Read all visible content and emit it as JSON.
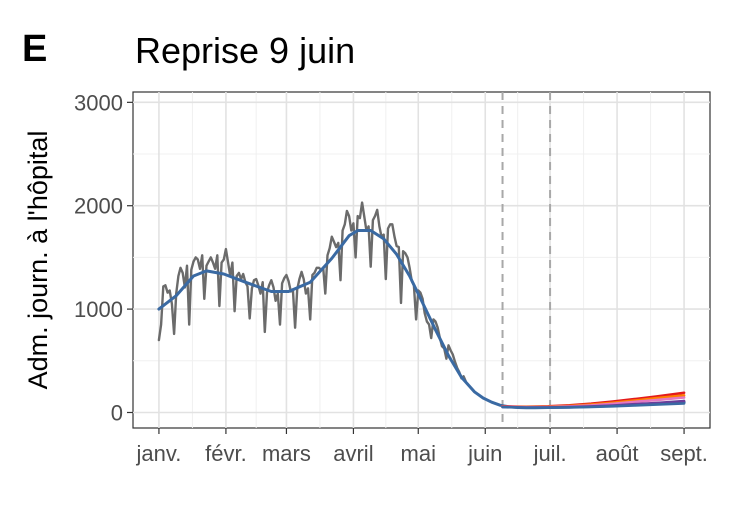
{
  "panel_label": "E",
  "chart_data": {
    "type": "line",
    "title": "Reprise 9 juin",
    "ylabel": "Adm. journ. à l'hôpital",
    "xlabel": "",
    "x_ticks": [
      {
        "label": "janv.",
        "day": 0
      },
      {
        "label": "févr.",
        "day": 31
      },
      {
        "label": "mars",
        "day": 59
      },
      {
        "label": "avril",
        "day": 90
      },
      {
        "label": "mai",
        "day": 120
      },
      {
        "label": "juin",
        "day": 151
      },
      {
        "label": "juil.",
        "day": 181
      },
      {
        "label": "août",
        "day": 212
      },
      {
        "label": "sept.",
        "day": 243
      }
    ],
    "y_ticks": [
      0,
      1000,
      2000,
      3000
    ],
    "xlim": [
      -12,
      255
    ],
    "ylim": [
      -150,
      3100
    ],
    "grid": true,
    "vlines": [
      159,
      181
    ],
    "series": [
      {
        "role": "observed",
        "color": "#6b6b6b",
        "x": [
          0,
          1,
          2,
          3,
          4,
          5,
          6,
          7,
          8,
          9,
          10,
          11,
          12,
          13,
          14,
          15,
          16,
          17,
          18,
          19,
          20,
          21,
          22,
          23,
          24,
          25,
          26,
          27,
          28,
          29,
          30,
          31,
          32,
          33,
          34,
          35,
          36,
          37,
          38,
          39,
          40,
          41,
          42,
          43,
          44,
          45,
          46,
          47,
          48,
          49,
          50,
          51,
          52,
          53,
          54,
          55,
          56,
          57,
          58,
          59,
          60,
          61,
          62,
          63,
          64,
          65,
          66,
          67,
          68,
          69,
          70,
          71,
          72,
          73,
          74,
          75,
          76,
          77,
          78,
          79,
          80,
          81,
          82,
          83,
          84,
          85,
          86,
          87,
          88,
          89,
          90,
          91,
          92,
          93,
          94,
          95,
          96,
          97,
          98,
          99,
          100,
          101,
          102,
          103,
          104,
          105,
          106,
          107,
          108,
          109,
          110,
          111,
          112,
          113,
          114,
          115,
          116,
          117,
          118,
          119,
          120,
          121,
          122,
          123,
          124,
          125,
          126,
          127,
          128,
          129,
          130,
          131,
          132,
          133,
          134,
          135,
          136,
          137,
          138,
          139,
          140,
          141,
          142
        ],
        "y": [
          700,
          850,
          1220,
          1230,
          1160,
          1180,
          1050,
          760,
          1150,
          1320,
          1400,
          1350,
          1210,
          1420,
          850,
          1380,
          1460,
          1500,
          1480,
          1390,
          1520,
          1100,
          1420,
          1460,
          1500,
          1450,
          1390,
          1520,
          1030,
          1450,
          1480,
          1580,
          1450,
          1320,
          1450,
          980,
          1320,
          1350,
          1290,
          1340,
          1260,
          1220,
          910,
          1200,
          1280,
          1290,
          1230,
          1150,
          1260,
          780,
          1160,
          1230,
          1280,
          1210,
          1080,
          1150,
          850,
          1250,
          1300,
          1330,
          1270,
          1170,
          1190,
          820,
          1190,
          1290,
          1360,
          1290,
          1150,
          1200,
          900,
          1330,
          1350,
          1400,
          1400,
          1380,
          1400,
          1150,
          1520,
          1590,
          1700,
          1650,
          1600,
          1640,
          1280,
          1760,
          1820,
          1950,
          1900,
          1760,
          1830,
          1500,
          1900,
          1880,
          2030,
          1900,
          1760,
          1800,
          1410,
          1860,
          1900,
          1960,
          1800,
          1700,
          1720,
          1290,
          1780,
          1820,
          1820,
          1700,
          1610,
          1600,
          1060,
          1560,
          1540,
          1500,
          1400,
          1270,
          1230,
          900,
          1180,
          1160,
          1100,
          960,
          880,
          850,
          720,
          900,
          880,
          820,
          720,
          640,
          620,
          520,
          650,
          600,
          560,
          490,
          430,
          390,
          330,
          350,
          300
        ]
      },
      {
        "role": "model",
        "color": "#3a6aa3",
        "x": [
          0,
          8,
          16,
          22,
          30,
          40,
          52,
          60,
          70,
          80,
          88,
          92,
          98,
          104,
          110,
          116,
          122,
          128,
          134,
          140,
          146,
          150,
          154,
          158,
          162,
          166,
          170,
          174,
          180,
          190,
          200,
          210,
          220,
          230,
          243
        ],
        "y": [
          1000,
          1130,
          1320,
          1370,
          1340,
          1260,
          1170,
          1170,
          1260,
          1490,
          1710,
          1760,
          1760,
          1680,
          1530,
          1320,
          1060,
          800,
          550,
          340,
          200,
          140,
          100,
          70,
          55,
          48,
          45,
          45,
          48,
          52,
          58,
          66,
          76,
          86,
          100
        ]
      },
      {
        "role": "scenario",
        "color": "#e31a1c",
        "x": [
          159,
          170,
          180,
          190,
          200,
          210,
          220,
          230,
          243
        ],
        "y": [
          60,
          55,
          60,
          70,
          85,
          105,
          130,
          155,
          190
        ]
      },
      {
        "role": "scenario",
        "color": "#ff7f00",
        "x": [
          159,
          170,
          180,
          190,
          200,
          210,
          220,
          230,
          243
        ],
        "y": [
          58,
          52,
          56,
          64,
          76,
          94,
          115,
          138,
          165
        ]
      },
      {
        "role": "scenario",
        "color": "#e377c2",
        "x": [
          159,
          170,
          180,
          190,
          200,
          210,
          220,
          230,
          243
        ],
        "y": [
          56,
          50,
          53,
          59,
          69,
          84,
          102,
          120,
          145
        ]
      },
      {
        "role": "scenario",
        "color": "#6a3d9a",
        "x": [
          159,
          170,
          180,
          190,
          200,
          210,
          220,
          230,
          243
        ],
        "y": [
          54,
          48,
          49,
          53,
          59,
          68,
          80,
          92,
          110
        ]
      },
      {
        "role": "scenario",
        "color": "#3a6aa3",
        "x": [
          159,
          170,
          180,
          190,
          200,
          210,
          220,
          230,
          243
        ],
        "y": [
          52,
          46,
          46,
          49,
          53,
          60,
          68,
          76,
          88
        ]
      }
    ]
  }
}
